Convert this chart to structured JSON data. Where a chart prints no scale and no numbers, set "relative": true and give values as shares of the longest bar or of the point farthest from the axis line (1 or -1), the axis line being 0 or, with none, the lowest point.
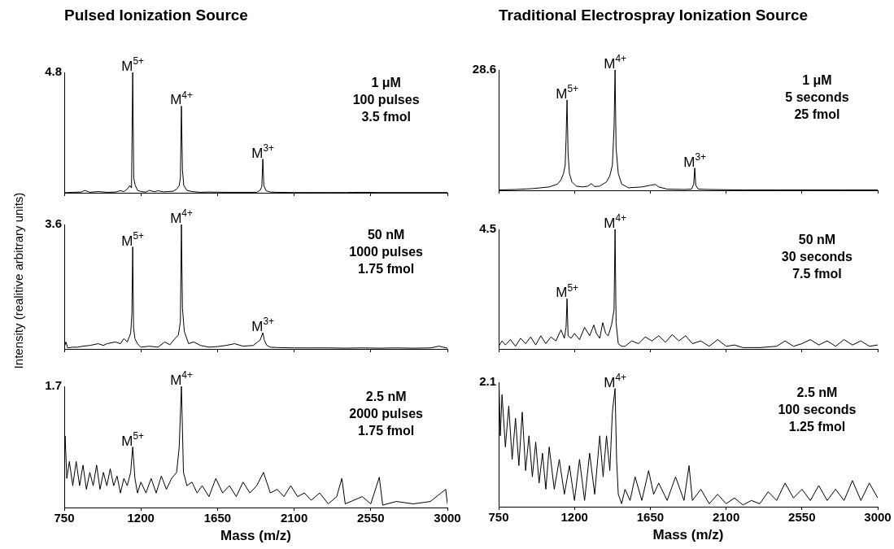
{
  "chart_data": [
    {
      "type": "line",
      "title": "Pulsed Ionization Source",
      "relative": true,
      "tick_labels": false,
      "xlim": [
        750,
        3000
      ],
      "xticks": [
        750,
        1200,
        1650,
        2100,
        2550,
        3000
      ],
      "x": [
        750,
        800,
        850,
        870,
        900,
        950,
        1000,
        1050,
        1080,
        1100,
        1120,
        1135,
        1145,
        1152,
        1158,
        1165,
        1180,
        1200,
        1230,
        1250,
        1280,
        1300,
        1330,
        1360,
        1390,
        1410,
        1425,
        1432,
        1438,
        1444,
        1452,
        1470,
        1500,
        1550,
        1600,
        1700,
        1800,
        1880,
        1900,
        1910,
        1916,
        1922,
        1935,
        1960,
        2000,
        2100,
        2200,
        2300,
        2400,
        2500,
        2600,
        2700,
        2800,
        2900,
        3000
      ],
      "series": [
        {
          "color": "#000000",
          "values": [
            0,
            0.004,
            0.006,
            0.02,
            0.004,
            0.01,
            0.004,
            0.006,
            0.017,
            0.01,
            0.03,
            0.06,
            0.04,
            1,
            0.125,
            0.07,
            0.02,
            0.01,
            0.006,
            0.02,
            0.008,
            0.017,
            0.008,
            0.01,
            0.013,
            0.03,
            0.06,
            0.125,
            0.72,
            0.19,
            0.06,
            0.02,
            0.01,
            0.004,
            0.006,
            0.004,
            0.004,
            0.004,
            0.02,
            0.05,
            0.28,
            0.06,
            0.017,
            0.006,
            0.004,
            0.002,
            0.002,
            0.002,
            0.002,
            0.004,
            0.002,
            0.002,
            0.002,
            0.002,
            0.002
          ]
        }
      ],
      "annotations": [
        "4.8",
        {
          "text": "M$^{5+}$",
          "x": 1152,
          "y": 1
        },
        {
          "text": "M$^{4+}$",
          "x": 1438,
          "y": 0.72
        },
        {
          "text": "M$^{3+}$",
          "x": 1916,
          "y": 0.28
        },
        "1 μM\n100 pulses\n3.5 fmol"
      ]
    },
    {
      "type": "line",
      "title": "Traditional Electrospray Ionization Source",
      "relative": true,
      "tick_labels": false,
      "xlim": [
        750,
        3000
      ],
      "xticks": [
        750,
        1200,
        1650,
        2100,
        2550,
        3000
      ],
      "x": [
        750,
        850,
        950,
        1050,
        1100,
        1120,
        1135,
        1145,
        1150,
        1156,
        1162,
        1170,
        1185,
        1210,
        1250,
        1280,
        1300,
        1320,
        1350,
        1390,
        1410,
        1425,
        1435,
        1441,
        1447,
        1460,
        1480,
        1520,
        1600,
        1650,
        1680,
        1700,
        1750,
        1850,
        1895,
        1908,
        1914,
        1920,
        1935,
        2000,
        2200,
        2400,
        2600,
        2800,
        3000
      ],
      "series": [
        {
          "color": "#000000",
          "values": [
            0.003,
            0.007,
            0.014,
            0.028,
            0.052,
            0.087,
            0.14,
            0.21,
            0.42,
            0.75,
            0.31,
            0.14,
            0.07,
            0.035,
            0.028,
            0.035,
            0.056,
            0.031,
            0.035,
            0.07,
            0.12,
            0.21,
            0.52,
            1,
            0.35,
            0.14,
            0.052,
            0.021,
            0.028,
            0.042,
            0.049,
            0.028,
            0.01,
            0.007,
            0.01,
            0.052,
            0.185,
            0.042,
            0.01,
            0.007,
            0.003,
            0.003,
            0.003,
            0.003,
            0.003
          ]
        }
      ],
      "annotations": [
        "28.6",
        {
          "text": "M$^{5+}$",
          "x": 1156,
          "y": 0.75
        },
        {
          "text": "M$^{4+}$",
          "x": 1441,
          "y": 1
        },
        {
          "text": "M$^{3+}$",
          "x": 1914,
          "y": 0.185
        },
        "1 μM\n5 seconds\n25 fmol"
      ]
    },
    {
      "type": "line",
      "ylabel": "Intensity (realitive arbitrary units)",
      "relative": true,
      "tick_labels": false,
      "xlim": [
        750,
        3000
      ],
      "xticks": [
        750,
        1200,
        1650,
        2100,
        2550,
        3000
      ],
      "x": [
        750,
        760,
        770,
        800,
        830,
        860,
        900,
        950,
        980,
        1000,
        1050,
        1080,
        1100,
        1120,
        1140,
        1147,
        1152,
        1157,
        1165,
        1180,
        1200,
        1250,
        1300,
        1340,
        1370,
        1400,
        1420,
        1432,
        1438,
        1444,
        1455,
        1480,
        1510,
        1550,
        1600,
        1650,
        1700,
        1750,
        1800,
        1860,
        1885,
        1900,
        1916,
        1925,
        1940,
        1960,
        2000,
        2100,
        2200,
        2300,
        2400,
        2500,
        2600,
        2700,
        2800,
        2900,
        2950,
        3000
      ],
      "series": [
        {
          "color": "#000000",
          "values": [
            0.014,
            0.056,
            0.008,
            0.014,
            0.014,
            0.022,
            0.028,
            0.042,
            0.028,
            0.042,
            0.056,
            0.042,
            0.083,
            0.056,
            0.125,
            0.28,
            0.82,
            0.17,
            0.083,
            0.042,
            0.014,
            0.022,
            0.014,
            0.056,
            0.033,
            0.083,
            0.11,
            0.22,
            1,
            0.33,
            0.14,
            0.042,
            0.056,
            0.028,
            0.014,
            0.019,
            0.028,
            0.042,
            0.022,
            0.028,
            0.056,
            0.07,
            0.13,
            0.07,
            0.028,
            0.014,
            0.011,
            0.008,
            0.008,
            0.008,
            0.006,
            0.008,
            0.006,
            0.008,
            0.006,
            0.008,
            0.022,
            0.006
          ]
        }
      ],
      "annotations": [
        "3.6",
        {
          "text": "M$^{5+}$",
          "x": 1152,
          "y": 0.82
        },
        {
          "text": "M$^{4+}$",
          "x": 1438,
          "y": 1
        },
        {
          "text": "M$^{3+}$",
          "x": 1916,
          "y": 0.13
        },
        "50 nM\n1000 pulses\n1.75 fmol"
      ]
    },
    {
      "type": "line",
      "relative": true,
      "tick_labels": false,
      "xlim": [
        750,
        3000
      ],
      "xticks": [
        750,
        1200,
        1650,
        2100,
        2550,
        3000
      ],
      "x": [
        750,
        770,
        790,
        820,
        850,
        880,
        910,
        940,
        970,
        1000,
        1030,
        1060,
        1090,
        1120,
        1140,
        1150,
        1156,
        1162,
        1180,
        1200,
        1230,
        1260,
        1290,
        1315,
        1330,
        1350,
        1368,
        1385,
        1400,
        1420,
        1435,
        1441,
        1447,
        1460,
        1480,
        1500,
        1540,
        1580,
        1620,
        1660,
        1700,
        1740,
        1780,
        1820,
        1860,
        1900,
        1950,
        2000,
        2050,
        2100,
        2150,
        2200,
        2300,
        2400,
        2450,
        2500,
        2550,
        2600,
        2650,
        2700,
        2750,
        2800,
        2850,
        2900,
        2950,
        3000
      ],
      "series": [
        {
          "color": "#000000",
          "values": [
            0.022,
            0.067,
            0.033,
            0.078,
            0.022,
            0.089,
            0.044,
            0.1,
            0.033,
            0.11,
            0.044,
            0.1,
            0.067,
            0.16,
            0.089,
            0.18,
            0.42,
            0.11,
            0.089,
            0.13,
            0.078,
            0.18,
            0.11,
            0.2,
            0.13,
            0.089,
            0.22,
            0.13,
            0.11,
            0.2,
            0.33,
            1,
            0.22,
            0.044,
            0.022,
            0.022,
            0.067,
            0.044,
            0.1,
            0.067,
            0.11,
            0.056,
            0.12,
            0.067,
            0.11,
            0.044,
            0.067,
            0.022,
            0.078,
            0.022,
            0.033,
            0.011,
            0.011,
            0.022,
            0.067,
            0.022,
            0.044,
            0.078,
            0.033,
            0.067,
            0.022,
            0.078,
            0.033,
            0.067,
            0.022,
            0.033
          ]
        }
      ],
      "annotations": [
        "4.5",
        {
          "text": "M$^{5+}$",
          "x": 1156,
          "y": 0.42
        },
        {
          "text": "M$^{4+}$",
          "x": 1441,
          "y": 1
        },
        "50 nM\n30 seconds\n7.5 fmol"
      ]
    },
    {
      "type": "line",
      "xlabel": "Mass (m/z)",
      "relative": true,
      "tick_labels": "x",
      "xlim": [
        750,
        3000
      ],
      "xticks": [
        750,
        1200,
        1650,
        2100,
        2550,
        3000
      ],
      "x": [
        750,
        755,
        765,
        780,
        800,
        820,
        840,
        860,
        880,
        900,
        920,
        940,
        960,
        980,
        1000,
        1020,
        1040,
        1060,
        1080,
        1100,
        1120,
        1140,
        1152,
        1165,
        1180,
        1200,
        1230,
        1260,
        1290,
        1320,
        1350,
        1380,
        1410,
        1425,
        1438,
        1450,
        1470,
        1500,
        1530,
        1560,
        1600,
        1640,
        1680,
        1720,
        1760,
        1800,
        1840,
        1880,
        1920,
        1960,
        2000,
        2040,
        2080,
        2120,
        2160,
        2200,
        2250,
        2300,
        2350,
        2380,
        2400,
        2450,
        2500,
        2550,
        2600,
        2620,
        2700,
        2800,
        2900,
        2990,
        3000
      ],
      "series": [
        {
          "color": "#000000",
          "values": [
            0.35,
            0.59,
            0.24,
            0.38,
            0.18,
            0.38,
            0.18,
            0.35,
            0.15,
            0.29,
            0.18,
            0.35,
            0.15,
            0.29,
            0.18,
            0.32,
            0.18,
            0.26,
            0.12,
            0.24,
            0.18,
            0.29,
            0.5,
            0.24,
            0.12,
            0.21,
            0.12,
            0.24,
            0.12,
            0.26,
            0.15,
            0.24,
            0.29,
            0.5,
            1,
            0.29,
            0.18,
            0.21,
            0.12,
            0.18,
            0.09,
            0.24,
            0.12,
            0.18,
            0.09,
            0.21,
            0.12,
            0.18,
            0.29,
            0.12,
            0.15,
            0.09,
            0.18,
            0.09,
            0.12,
            0.06,
            0.12,
            0.03,
            0.09,
            0.24,
            0.03,
            0.06,
            0.09,
            0.03,
            0.25,
            0.02,
            0.05,
            0.03,
            0.05,
            0.15,
            0.03
          ]
        }
      ],
      "annotations": [
        "1.7",
        {
          "text": "M$^{5+}$",
          "x": 1152,
          "y": 0.5
        },
        {
          "text": "M$^{4+}$",
          "x": 1438,
          "y": 1
        },
        "2.5 nM\n2000 pulses\n1.75 fmol"
      ]
    },
    {
      "type": "line",
      "xlabel": "Mass (m/z)",
      "relative": true,
      "tick_labels": "x",
      "xlim": [
        750,
        3000
      ],
      "xticks": [
        750,
        1200,
        1650,
        2100,
        2550,
        3000
      ],
      "x": [
        750,
        752,
        760,
        770,
        790,
        810,
        830,
        850,
        870,
        890,
        910,
        930,
        950,
        970,
        990,
        1010,
        1030,
        1050,
        1080,
        1110,
        1140,
        1170,
        1200,
        1230,
        1260,
        1290,
        1320,
        1350,
        1370,
        1390,
        1410,
        1425,
        1441,
        1450,
        1460,
        1480,
        1500,
        1530,
        1560,
        1600,
        1640,
        1670,
        1700,
        1750,
        1800,
        1850,
        1880,
        1900,
        1950,
        2000,
        2050,
        2100,
        2150,
        2200,
        2250,
        2300,
        2350,
        2400,
        2450,
        2500,
        2550,
        2600,
        2650,
        2700,
        2750,
        2800,
        2850,
        2900,
        2950,
        3000
      ],
      "series": [
        {
          "color": "#000000",
          "values": [
            0.24,
            1,
            0.57,
            0.9,
            0.48,
            0.81,
            0.38,
            0.71,
            0.33,
            0.76,
            0.29,
            0.57,
            0.24,
            0.52,
            0.19,
            0.43,
            0.14,
            0.48,
            0.14,
            0.38,
            0.1,
            0.33,
            0.05,
            0.38,
            0.05,
            0.43,
            0.1,
            0.57,
            0.24,
            0.57,
            0.29,
            0.76,
            0.95,
            0.38,
            0.1,
            0.024,
            0.14,
            0.05,
            0.24,
            0.05,
            0.29,
            0.1,
            0.19,
            0.05,
            0.24,
            0.05,
            0.33,
            0.05,
            0.14,
            0.024,
            0.1,
            0.024,
            0.07,
            0.014,
            0.05,
            0.024,
            0.12,
            0.05,
            0.19,
            0.07,
            0.14,
            0.05,
            0.17,
            0.05,
            0.14,
            0.05,
            0.21,
            0.05,
            0.19,
            0.07
          ]
        }
      ],
      "annotations": [
        "2.1",
        {
          "text": "M$^{4+}$",
          "x": 1441,
          "y": 0.95
        },
        "2.5 nM\n100 seconds\n1.25 fmol"
      ]
    }
  ]
}
